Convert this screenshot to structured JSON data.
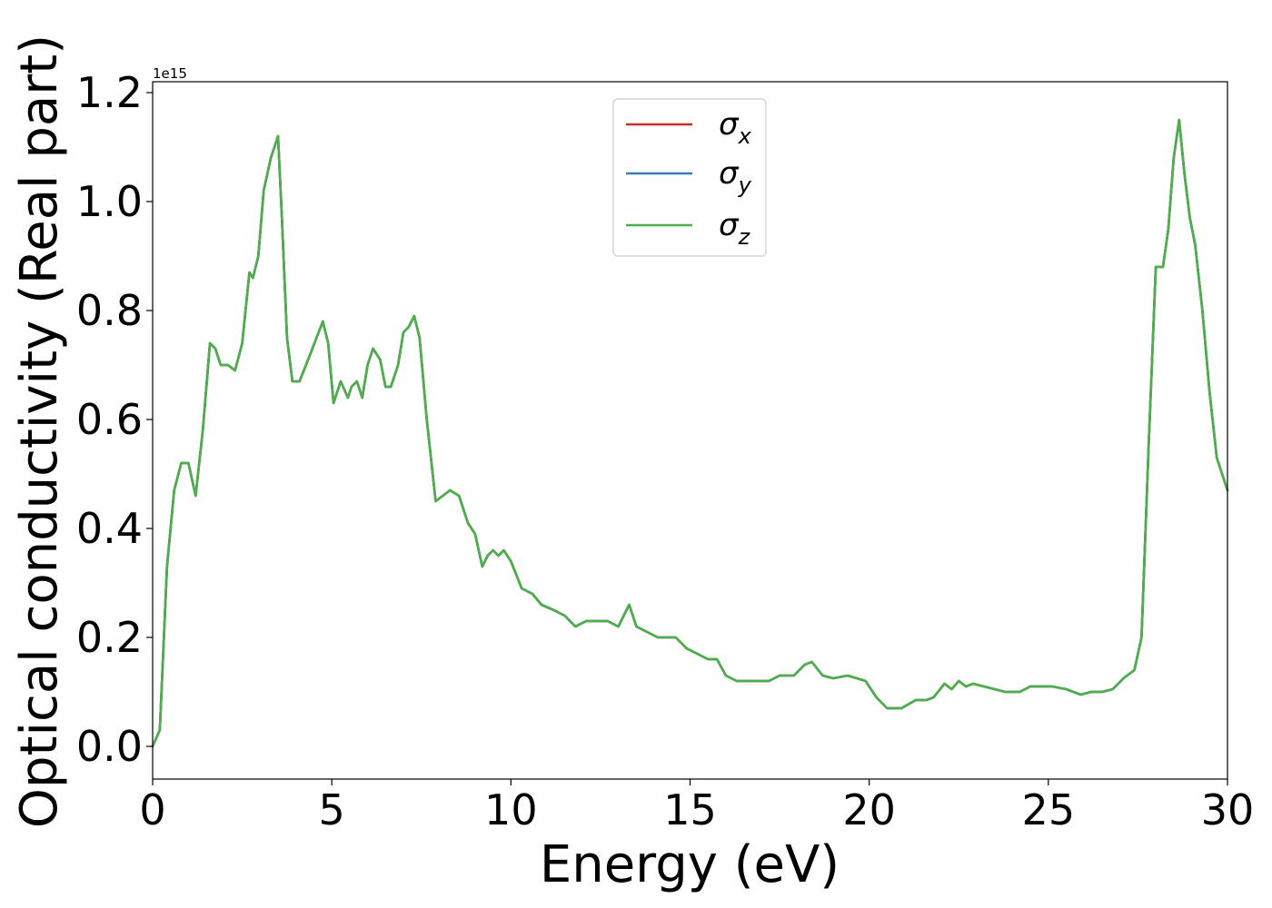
{
  "chart_data": {
    "type": "line",
    "xlabel": "Energy (eV)",
    "ylabel": "Optical conductivity (Real part)",
    "y_offset_text": "1e15",
    "xlim": [
      0,
      30
    ],
    "ylim": [
      -0.06,
      1.22
    ],
    "y_scale_factor": 1000000000000000.0,
    "xticks": [
      0,
      5,
      10,
      15,
      20,
      25,
      30
    ],
    "xtick_labels": [
      "0",
      "5",
      "10",
      "15",
      "20",
      "25",
      "30"
    ],
    "yticks": [
      0.0,
      0.2,
      0.4,
      0.6,
      0.8,
      1.0,
      1.2
    ],
    "ytick_labels": [
      "0.0",
      "0.2",
      "0.4",
      "0.6",
      "0.8",
      "1.0",
      "1.2"
    ],
    "grid": false,
    "legend_position": "top-center",
    "x": [
      0,
      0.2,
      0.4,
      0.6,
      0.8,
      1.0,
      1.2,
      1.4,
      1.6,
      1.75,
      1.9,
      2.1,
      2.3,
      2.5,
      2.7,
      2.8,
      2.95,
      3.1,
      3.3,
      3.5,
      3.6,
      3.75,
      3.9,
      4.1,
      4.4,
      4.75,
      4.9,
      5.05,
      5.25,
      5.45,
      5.55,
      5.7,
      5.85,
      6.0,
      6.15,
      6.35,
      6.5,
      6.65,
      6.85,
      7.0,
      7.15,
      7.3,
      7.45,
      7.65,
      7.9,
      8.1,
      8.3,
      8.55,
      8.8,
      9.0,
      9.2,
      9.35,
      9.5,
      9.65,
      9.8,
      10.0,
      10.3,
      10.6,
      10.85,
      11.2,
      11.5,
      11.8,
      12.1,
      12.4,
      12.7,
      13.0,
      13.15,
      13.3,
      13.5,
      13.8,
      14.1,
      14.4,
      14.6,
      14.9,
      15.2,
      15.5,
      15.75,
      16.0,
      16.3,
      16.6,
      16.9,
      17.2,
      17.5,
      17.9,
      18.2,
      18.4,
      18.7,
      19.0,
      19.4,
      19.9,
      20.2,
      20.5,
      20.9,
      21.3,
      21.6,
      21.8,
      22.1,
      22.3,
      22.5,
      22.7,
      22.9,
      23.2,
      23.5,
      23.8,
      24.2,
      24.5,
      24.8,
      25.1,
      25.5,
      25.9,
      26.2,
      26.5,
      26.8,
      27.1,
      27.4,
      27.6,
      27.8,
      28.0,
      28.2,
      28.35,
      28.5,
      28.65,
      28.8,
      28.95,
      29.1,
      29.3,
      29.5,
      29.7,
      29.85,
      30.0
    ],
    "series": [
      {
        "name": "σx",
        "color": "#d62728",
        "values": [
          0.0,
          0.03,
          0.33,
          0.47,
          0.52,
          0.52,
          0.46,
          0.58,
          0.74,
          0.73,
          0.7,
          0.7,
          0.69,
          0.74,
          0.87,
          0.86,
          0.9,
          1.02,
          1.08,
          1.12,
          0.98,
          0.75,
          0.67,
          0.67,
          0.72,
          0.78,
          0.74,
          0.63,
          0.67,
          0.64,
          0.66,
          0.67,
          0.64,
          0.7,
          0.73,
          0.71,
          0.66,
          0.66,
          0.7,
          0.76,
          0.77,
          0.79,
          0.75,
          0.6,
          0.45,
          0.46,
          0.47,
          0.46,
          0.41,
          0.39,
          0.33,
          0.35,
          0.36,
          0.35,
          0.36,
          0.34,
          0.29,
          0.28,
          0.26,
          0.25,
          0.24,
          0.22,
          0.23,
          0.23,
          0.23,
          0.22,
          0.24,
          0.26,
          0.22,
          0.21,
          0.2,
          0.2,
          0.2,
          0.18,
          0.17,
          0.16,
          0.16,
          0.13,
          0.12,
          0.12,
          0.12,
          0.12,
          0.13,
          0.13,
          0.15,
          0.155,
          0.13,
          0.125,
          0.13,
          0.12,
          0.09,
          0.07,
          0.07,
          0.085,
          0.085,
          0.09,
          0.115,
          0.105,
          0.12,
          0.11,
          0.115,
          0.11,
          0.105,
          0.1,
          0.1,
          0.11,
          0.11,
          0.11,
          0.105,
          0.095,
          0.1,
          0.1,
          0.105,
          0.125,
          0.14,
          0.2,
          0.55,
          0.88,
          0.88,
          0.95,
          1.08,
          1.15,
          1.05,
          0.97,
          0.92,
          0.8,
          0.65,
          0.53,
          0.5,
          0.47
        ]
      },
      {
        "name": "σy",
        "color": "#377eb8",
        "values": [
          0.0,
          0.03,
          0.33,
          0.47,
          0.52,
          0.52,
          0.46,
          0.58,
          0.74,
          0.73,
          0.7,
          0.7,
          0.69,
          0.74,
          0.87,
          0.86,
          0.9,
          1.02,
          1.08,
          1.12,
          0.98,
          0.75,
          0.67,
          0.67,
          0.72,
          0.78,
          0.74,
          0.63,
          0.67,
          0.64,
          0.66,
          0.67,
          0.64,
          0.7,
          0.73,
          0.71,
          0.66,
          0.66,
          0.7,
          0.76,
          0.77,
          0.79,
          0.75,
          0.6,
          0.45,
          0.46,
          0.47,
          0.46,
          0.41,
          0.39,
          0.33,
          0.35,
          0.36,
          0.35,
          0.36,
          0.34,
          0.29,
          0.28,
          0.26,
          0.25,
          0.24,
          0.22,
          0.23,
          0.23,
          0.23,
          0.22,
          0.24,
          0.26,
          0.22,
          0.21,
          0.2,
          0.2,
          0.2,
          0.18,
          0.17,
          0.16,
          0.16,
          0.13,
          0.12,
          0.12,
          0.12,
          0.12,
          0.13,
          0.13,
          0.15,
          0.155,
          0.13,
          0.125,
          0.13,
          0.12,
          0.09,
          0.07,
          0.07,
          0.085,
          0.085,
          0.09,
          0.115,
          0.105,
          0.12,
          0.11,
          0.115,
          0.11,
          0.105,
          0.1,
          0.1,
          0.11,
          0.11,
          0.11,
          0.105,
          0.095,
          0.1,
          0.1,
          0.105,
          0.125,
          0.14,
          0.2,
          0.55,
          0.88,
          0.88,
          0.95,
          1.08,
          1.15,
          1.05,
          0.97,
          0.92,
          0.8,
          0.65,
          0.53,
          0.5,
          0.47
        ]
      },
      {
        "name": "σz",
        "color": "#4daf4a",
        "values": [
          0.0,
          0.03,
          0.33,
          0.47,
          0.52,
          0.52,
          0.46,
          0.58,
          0.74,
          0.73,
          0.7,
          0.7,
          0.69,
          0.74,
          0.87,
          0.86,
          0.9,
          1.02,
          1.08,
          1.12,
          0.98,
          0.75,
          0.67,
          0.67,
          0.72,
          0.78,
          0.74,
          0.63,
          0.67,
          0.64,
          0.66,
          0.67,
          0.64,
          0.7,
          0.73,
          0.71,
          0.66,
          0.66,
          0.7,
          0.76,
          0.77,
          0.79,
          0.75,
          0.6,
          0.45,
          0.46,
          0.47,
          0.46,
          0.41,
          0.39,
          0.33,
          0.35,
          0.36,
          0.35,
          0.36,
          0.34,
          0.29,
          0.28,
          0.26,
          0.25,
          0.24,
          0.22,
          0.23,
          0.23,
          0.23,
          0.22,
          0.24,
          0.26,
          0.22,
          0.21,
          0.2,
          0.2,
          0.2,
          0.18,
          0.17,
          0.16,
          0.16,
          0.13,
          0.12,
          0.12,
          0.12,
          0.12,
          0.13,
          0.13,
          0.15,
          0.155,
          0.13,
          0.125,
          0.13,
          0.12,
          0.09,
          0.07,
          0.07,
          0.085,
          0.085,
          0.09,
          0.115,
          0.105,
          0.12,
          0.11,
          0.115,
          0.11,
          0.105,
          0.1,
          0.1,
          0.11,
          0.11,
          0.11,
          0.105,
          0.095,
          0.1,
          0.1,
          0.105,
          0.125,
          0.14,
          0.2,
          0.55,
          0.88,
          0.88,
          0.95,
          1.08,
          1.15,
          1.05,
          0.97,
          0.92,
          0.8,
          0.65,
          0.53,
          0.5,
          0.47
        ]
      }
    ]
  }
}
